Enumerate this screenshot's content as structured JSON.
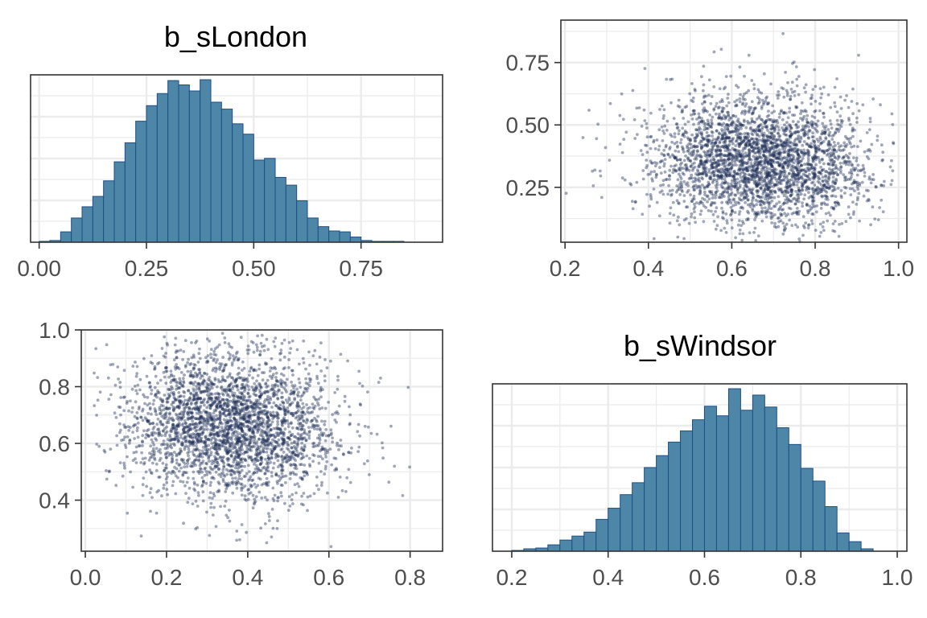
{
  "colors": {
    "bar_fill": "#4d86a7",
    "bar_stroke": "#1f4e86",
    "point": "#1c2e55",
    "grid": "#ebebeb",
    "axis_text": "#4d4d4d",
    "panel_border": "#333333"
  },
  "chart_data": [
    {
      "id": "hist_london",
      "type": "bar",
      "title": "b_sLondon",
      "xlim": [
        -0.02,
        0.94
      ],
      "x_ticks": [
        0.0,
        0.25,
        0.5,
        0.75
      ],
      "x_tick_labels": [
        "0.00",
        "0.25",
        "0.50",
        "0.75"
      ],
      "y_ticks_shown": false,
      "grid": true,
      "bin_width": 0.025,
      "bin_start": 0.0,
      "counts": [
        1,
        2,
        12,
        28,
        41,
        53,
        71,
        93,
        115,
        140,
        158,
        172,
        187,
        182,
        175,
        188,
        162,
        154,
        137,
        125,
        95,
        97,
        75,
        66,
        48,
        28,
        18,
        13,
        12,
        6,
        2,
        1,
        1,
        1
      ]
    },
    {
      "id": "scatter_upper",
      "type": "scatter",
      "x_var": "b_sWindsor",
      "y_var": "b_sLondon",
      "xlim": [
        0.19,
        1.02
      ],
      "ylim": [
        0.03,
        0.92
      ],
      "x_ticks": [
        0.2,
        0.4,
        0.6,
        0.8,
        1.0
      ],
      "x_tick_labels": [
        "0.2",
        "0.4",
        "0.6",
        "0.8",
        "1.0"
      ],
      "y_ticks": [
        0.25,
        0.5,
        0.75
      ],
      "y_tick_labels": [
        "0.25",
        "0.50",
        "0.75"
      ],
      "grid": true,
      "n_points": 3000,
      "seed": 7,
      "distribution": {
        "x_mean": 0.67,
        "x_sd": 0.13,
        "y_mean": 0.36,
        "y_sd": 0.13,
        "corr": -0.08
      }
    },
    {
      "id": "scatter_lower",
      "type": "scatter",
      "x_var": "b_sLondon",
      "y_var": "b_sWindsor",
      "xlim": [
        -0.01,
        0.88
      ],
      "ylim": [
        0.22,
        1.0
      ],
      "x_ticks": [
        0.0,
        0.2,
        0.4,
        0.6,
        0.8
      ],
      "x_tick_labels": [
        "0.0",
        "0.2",
        "0.4",
        "0.6",
        "0.8"
      ],
      "y_ticks": [
        0.4,
        0.6,
        0.8,
        1.0
      ],
      "y_tick_labels": [
        "0.4",
        "0.6",
        "0.8",
        "1.0"
      ],
      "grid": true,
      "n_points": 3000,
      "seed": 7,
      "distribution": {
        "x_mean": 0.36,
        "x_sd": 0.13,
        "y_mean": 0.67,
        "y_sd": 0.13,
        "corr": -0.08
      }
    },
    {
      "id": "hist_windsor",
      "type": "bar",
      "title": "b_sWindsor",
      "xlim": [
        0.16,
        1.02
      ],
      "x_ticks": [
        0.2,
        0.4,
        0.6,
        0.8,
        1.0
      ],
      "x_tick_labels": [
        "0.2",
        "0.4",
        "0.6",
        "0.8",
        "1.0"
      ],
      "y_ticks_shown": false,
      "grid": true,
      "bin_width": 0.025,
      "bin_start": 0.2,
      "counts": [
        1,
        3,
        4,
        8,
        14,
        19,
        24,
        40,
        54,
        71,
        86,
        105,
        120,
        137,
        151,
        165,
        182,
        170,
        204,
        177,
        196,
        181,
        155,
        134,
        104,
        88,
        56,
        23,
        12,
        3
      ]
    }
  ]
}
